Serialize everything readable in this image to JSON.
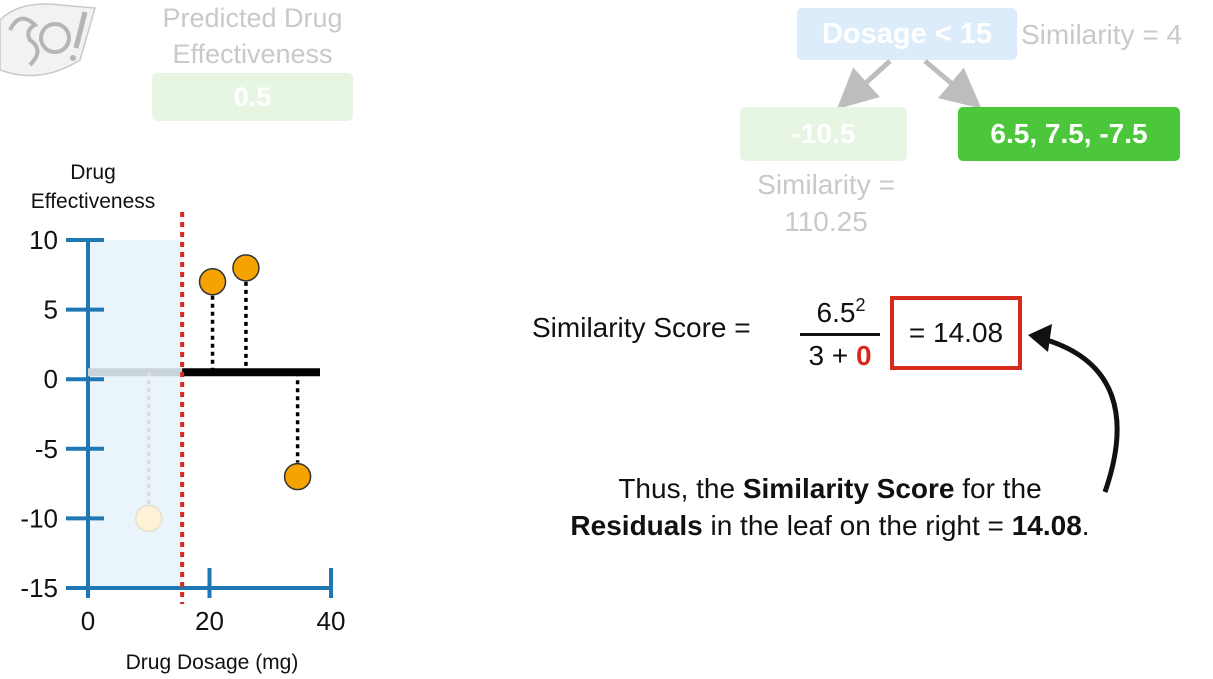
{
  "logo": {
    "icon": "statquest-logo-icon"
  },
  "prediction": {
    "title_line1": "Predicted Drug",
    "title_line2": "Effectiveness",
    "value": "0.5"
  },
  "tree": {
    "root_label": "Dosage < 15",
    "root_similarity": "Similarity = 4",
    "left_leaf_values": "-10.5",
    "left_similarity_line1": "Similarity =",
    "left_similarity_line2": "110.25",
    "right_leaf_values": "6.5, 7.5, -7.5"
  },
  "formula": {
    "label": "Similarity Score =",
    "numerator_base": "6.5",
    "numerator_exp": "2",
    "denominator_prefix": "3 +",
    "denominator_lambda": "0",
    "result": "= 14.08"
  },
  "conclusion": {
    "part1": "Thus, the",
    "bold1": "Similarity Score",
    "part2": "for the",
    "bold2": "Residuals",
    "part3": "in the leaf on the right =",
    "bold3": "14.08",
    "part4": "."
  },
  "colors": {
    "axis": "#1f77b4",
    "point": "#f5a300",
    "split_line": "#d62a1e",
    "leaf_green": "#4cc73b",
    "root_blue": "#dcecfb"
  },
  "chart_data": {
    "type": "scatter",
    "ylabel_line1": "Drug",
    "ylabel_line2": "Effectiveness",
    "xlabel": "Drug Dosage (mg)",
    "xlim": [
      0,
      40
    ],
    "ylim": [
      -15,
      10
    ],
    "x_ticks": [
      0,
      20,
      40
    ],
    "x_tick_labels": [
      "0",
      "20",
      "40"
    ],
    "y_ticks": [
      10,
      5,
      0,
      -5,
      -10,
      -15
    ],
    "y_tick_labels": [
      "10",
      "5",
      "0",
      "-5",
      "-10",
      "-15"
    ],
    "split_x": 15.5,
    "prediction_y": 0.5,
    "points": [
      {
        "x": 10,
        "y": -10,
        "faded": true
      },
      {
        "x": 20.5,
        "y": 7,
        "faded": false
      },
      {
        "x": 26,
        "y": 8,
        "faded": false
      },
      {
        "x": 34.5,
        "y": -7,
        "faded": false
      }
    ]
  }
}
